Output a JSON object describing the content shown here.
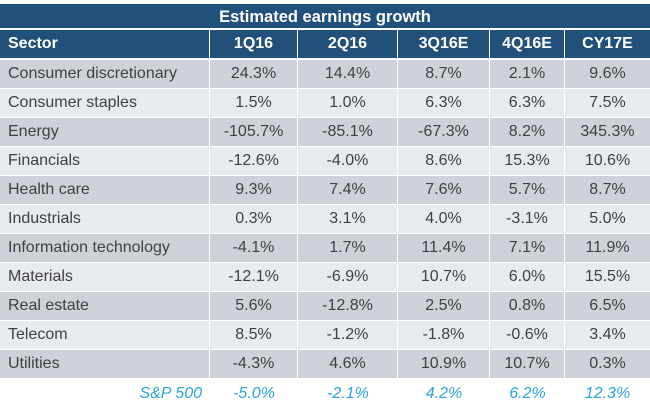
{
  "chart_data": {
    "type": "table",
    "title": "Estimated earnings growth",
    "columns": [
      "Sector",
      "1Q16",
      "2Q16",
      "3Q16E",
      "4Q16E",
      "CY17E"
    ],
    "rows": [
      [
        "Consumer discretionary",
        "24.3%",
        "14.4%",
        "8.7%",
        "2.1%",
        "9.6%"
      ],
      [
        "Consumer staples",
        "1.5%",
        "1.0%",
        "6.3%",
        "6.3%",
        "7.5%"
      ],
      [
        "Energy",
        "-105.7%",
        "-85.1%",
        "-67.3%",
        "8.2%",
        "345.3%"
      ],
      [
        "Financials",
        "-12.6%",
        "-4.0%",
        "8.6%",
        "15.3%",
        "10.6%"
      ],
      [
        "Health care",
        "9.3%",
        "7.4%",
        "7.6%",
        "5.7%",
        "8.7%"
      ],
      [
        "Industrials",
        "0.3%",
        "3.1%",
        "4.0%",
        "-3.1%",
        "5.0%"
      ],
      [
        "Information technology",
        "-4.1%",
        "1.7%",
        "11.4%",
        "7.1%",
        "11.9%"
      ],
      [
        "Materials",
        "-12.1%",
        "-6.9%",
        "10.7%",
        "6.0%",
        "15.5%"
      ],
      [
        "Real estate",
        "5.6%",
        "-12.8%",
        "2.5%",
        "0.8%",
        "6.5%"
      ],
      [
        "Telecom",
        "8.5%",
        "-1.2%",
        "-1.8%",
        "-0.6%",
        "3.4%"
      ],
      [
        "Utilities",
        "-4.3%",
        "4.6%",
        "10.9%",
        "10.7%",
        "0.3%"
      ]
    ],
    "total_row": [
      "S&P 500",
      "-5.0%",
      "-2.1%",
      "4.2%",
      "6.2%",
      "12.3%"
    ]
  },
  "colors": {
    "header_bg": "#21507b",
    "row_shade_a": "#ccd2d8",
    "row_shade_b": "#e8ebee",
    "total_text": "#2aa3d5",
    "body_text": "#404040"
  }
}
